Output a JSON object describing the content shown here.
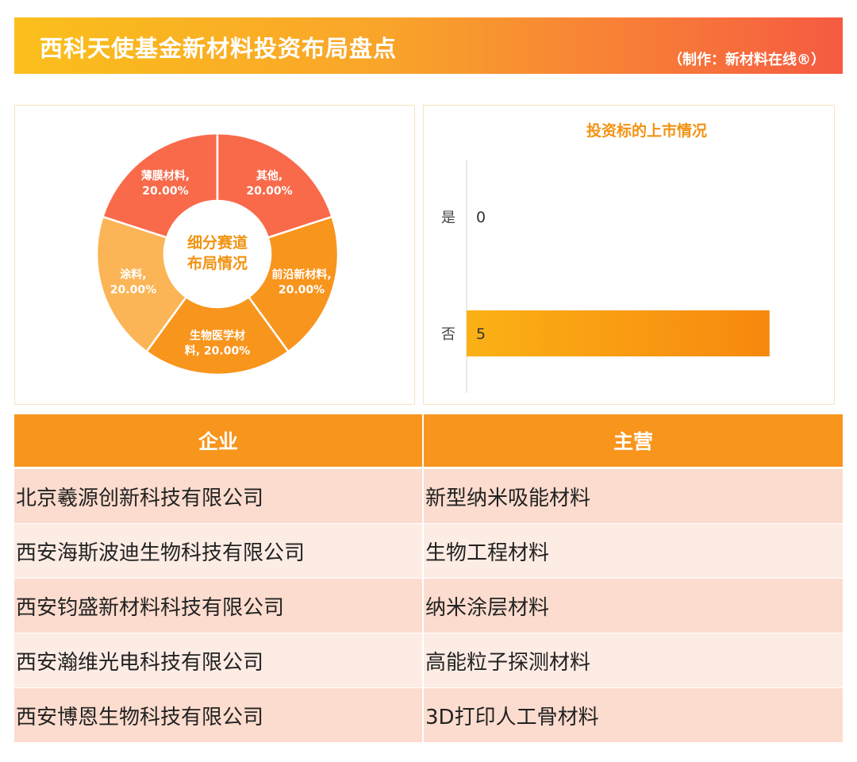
{
  "header": {
    "title": "西科天使基金新材料投资布局盘点",
    "credit": "（制作：新材料在线®）"
  },
  "colors": {
    "orange": "#f8951d",
    "red": "#f96a4a",
    "light_orange": "#fbb556",
    "title_orange": "#f29313"
  },
  "chart_data": [
    {
      "type": "pie",
      "center_label": [
        "细分赛道",
        "布局情况"
      ],
      "slices": [
        {
          "name": "薄膜材料",
          "value": 20.0,
          "label_lines": [
            "薄膜材料,",
            "20.00%"
          ],
          "color": "#f96a4a"
        },
        {
          "name": "其他",
          "value": 20.0,
          "label_lines": [
            "其他,",
            "20.00%"
          ],
          "color": "#f96a4a"
        },
        {
          "name": "前沿新材料",
          "value": 20.0,
          "label_lines": [
            "前沿新材料,",
            "20.00%"
          ],
          "color": "#f8951d"
        },
        {
          "name": "生物医学材料",
          "value": 20.0,
          "label_lines": [
            "生物医学材",
            "料, 20.00%"
          ],
          "color": "#f8951d"
        },
        {
          "name": "涂料",
          "value": 20.0,
          "label_lines": [
            "涂料,",
            "20.00%"
          ],
          "color": "#fbb556"
        }
      ]
    },
    {
      "type": "bar",
      "orientation": "horizontal",
      "title": "投资标的上市情况",
      "categories": [
        "是",
        "否"
      ],
      "values": [
        0,
        5
      ],
      "xlim": [
        0,
        5.5
      ]
    }
  ],
  "table": {
    "headers": [
      "企业",
      "主营"
    ],
    "rows": [
      [
        "北京羲源创新科技有限公司",
        "新型纳米吸能材料"
      ],
      [
        "西安海斯波迪生物科技有限公司",
        "生物工程材料"
      ],
      [
        "西安钧盛新材料科技有限公司",
        "纳米涂层材料"
      ],
      [
        "西安瀚维光电科技有限公司",
        "高能粒子探测材料"
      ],
      [
        "西安博恩生物科技有限公司",
        "3D打印人工骨材料"
      ]
    ]
  }
}
